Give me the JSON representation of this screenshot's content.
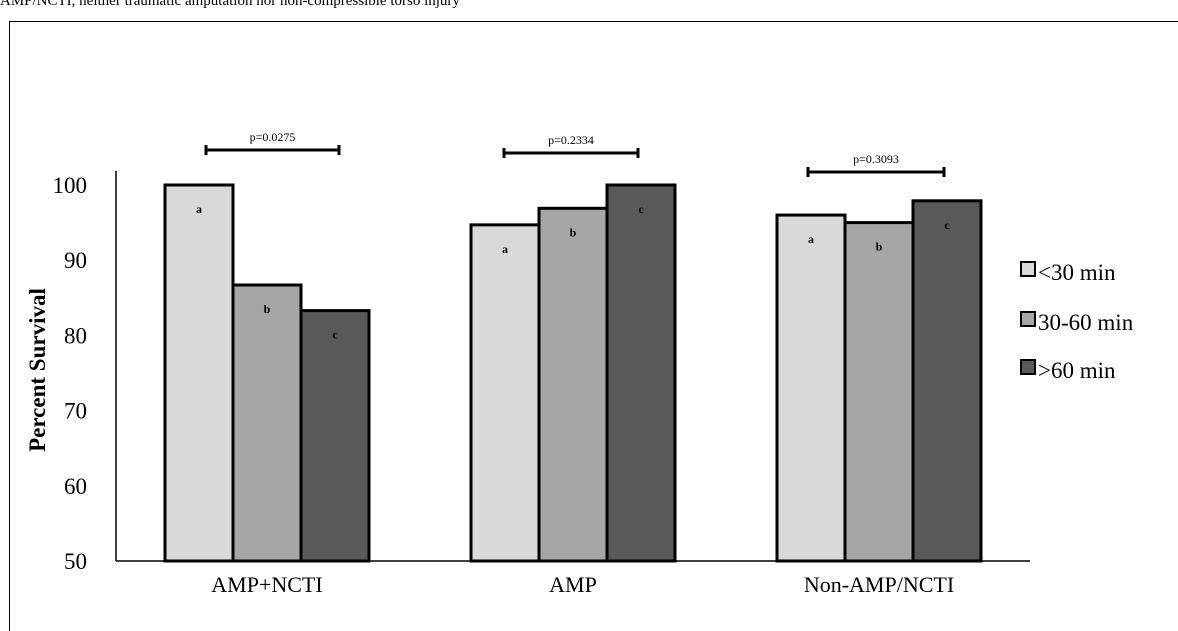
{
  "caption_fragment": "AMP/NCTI, neither traumatic amputation nor non-compressible torso injury",
  "colors": {
    "series": [
      "#d9d9d9",
      "#a6a6a6",
      "#595959"
    ],
    "outline": "#000000"
  },
  "chart_data": {
    "type": "bar",
    "title": "",
    "xlabel": "",
    "ylabel": "Percent Survival",
    "ylim": [
      50,
      100
    ],
    "yticks": [
      50,
      60,
      70,
      80,
      90,
      100
    ],
    "grid": false,
    "legend": "right",
    "categories": [
      "AMP+NCTI",
      "AMP",
      "Non-AMP/NCTI"
    ],
    "series": [
      {
        "name": "<30 min",
        "values": [
          100,
          94.7,
          96.0
        ]
      },
      {
        "name": "30-60 min",
        "values": [
          86.7,
          96.9,
          95.0
        ]
      },
      {
        "name": ">60 min",
        "values": [
          83.3,
          100,
          97.9
        ]
      }
    ],
    "bar_labels": [
      "a",
      "b",
      "c"
    ],
    "pvalues": [
      "p=0.0275",
      "p=0.2334",
      "p=0.3093"
    ]
  }
}
